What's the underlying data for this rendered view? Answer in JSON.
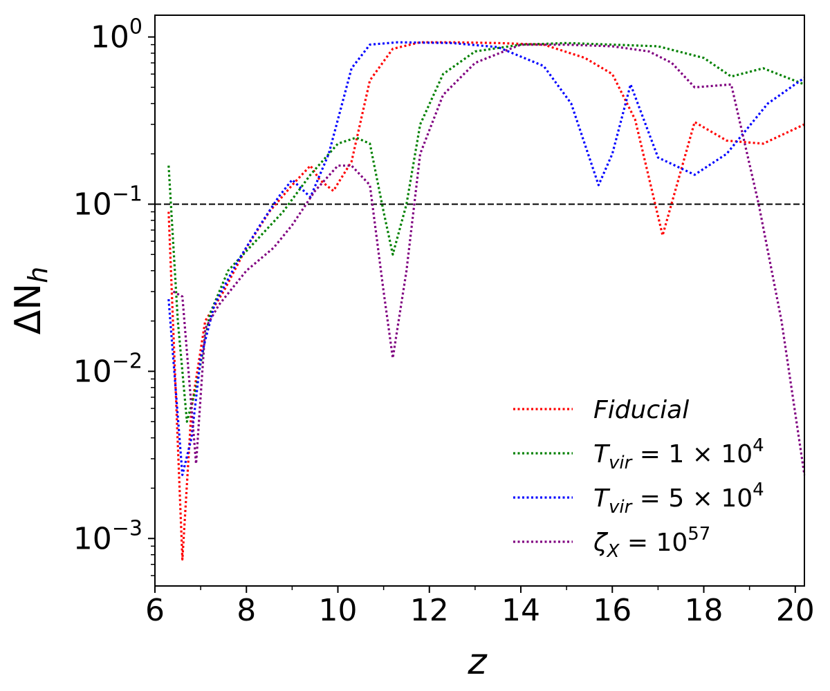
{
  "chart_data": {
    "type": "line",
    "xlabel": "z",
    "ylabel": "ΔN",
    "ylabel_sub": "h",
    "yscale": "log",
    "xlim": [
      6,
      20.2
    ],
    "ylim": [
      0.00052,
      1.35
    ],
    "x_ticks": [
      {
        "value": 6,
        "label": "6"
      },
      {
        "value": 8,
        "label": "8"
      },
      {
        "value": 10,
        "label": "10"
      },
      {
        "value": 12,
        "label": "12"
      },
      {
        "value": 14,
        "label": "14"
      },
      {
        "value": 16,
        "label": "16"
      },
      {
        "value": 18,
        "label": "18"
      },
      {
        "value": 20,
        "label": "20"
      }
    ],
    "x_minor_ticks": [
      7,
      9,
      11,
      13,
      15,
      17,
      19
    ],
    "y_ticks": [
      {
        "value": 0.001,
        "base": "10",
        "exp": "−3"
      },
      {
        "value": 0.01,
        "base": "10",
        "exp": "−2"
      },
      {
        "value": 0.1,
        "base": "10",
        "exp": "−1"
      },
      {
        "value": 1,
        "base": "10",
        "exp": "0"
      }
    ],
    "reference_line": {
      "y": 0.1,
      "style": "dashed",
      "color": "#000000"
    },
    "legend": {
      "placement": "lower-right",
      "frame": false
    },
    "series": [
      {
        "name": "Fiducial",
        "color": "#ff0000",
        "points": [
          [
            6.3,
            0.09
          ],
          [
            6.6,
            0.00075
          ],
          [
            6.8,
            0.006
          ],
          [
            7.1,
            0.02
          ],
          [
            7.5,
            0.03
          ],
          [
            8.0,
            0.055
          ],
          [
            8.5,
            0.09
          ],
          [
            9.0,
            0.13
          ],
          [
            9.4,
            0.17
          ],
          [
            9.6,
            0.14
          ],
          [
            9.9,
            0.12
          ],
          [
            10.3,
            0.18
          ],
          [
            10.7,
            0.55
          ],
          [
            11.2,
            0.85
          ],
          [
            11.8,
            0.93
          ],
          [
            12.5,
            0.93
          ],
          [
            13.5,
            0.92
          ],
          [
            14.5,
            0.9
          ],
          [
            15.4,
            0.75
          ],
          [
            16.0,
            0.6
          ],
          [
            16.5,
            0.32
          ],
          [
            17.1,
            0.065
          ],
          [
            17.8,
            0.31
          ],
          [
            18.5,
            0.24
          ],
          [
            19.3,
            0.23
          ],
          [
            20.2,
            0.3
          ]
        ]
      },
      {
        "name": "T_vir = 1×10^4",
        "label_base": "T",
        "label_sub": "vir",
        "label_rest": " = 1 × 10",
        "label_sup": "4",
        "color": "#008000",
        "points": [
          [
            6.3,
            0.17
          ],
          [
            6.5,
            0.02
          ],
          [
            6.7,
            0.005
          ],
          [
            6.9,
            0.008
          ],
          [
            7.2,
            0.022
          ],
          [
            7.6,
            0.04
          ],
          [
            8.2,
            0.06
          ],
          [
            8.8,
            0.09
          ],
          [
            9.4,
            0.15
          ],
          [
            10.0,
            0.23
          ],
          [
            10.4,
            0.25
          ],
          [
            10.7,
            0.23
          ],
          [
            11.0,
            0.09
          ],
          [
            11.2,
            0.05
          ],
          [
            11.5,
            0.1
          ],
          [
            11.8,
            0.3
          ],
          [
            12.3,
            0.6
          ],
          [
            13.0,
            0.82
          ],
          [
            14.0,
            0.9
          ],
          [
            15.0,
            0.92
          ],
          [
            16.0,
            0.9
          ],
          [
            17.0,
            0.88
          ],
          [
            18.0,
            0.75
          ],
          [
            18.6,
            0.58
          ],
          [
            19.3,
            0.65
          ],
          [
            20.2,
            0.52
          ]
        ]
      },
      {
        "name": "T_vir = 5×10^4",
        "label_base": "T",
        "label_sub": "vir",
        "label_rest": " = 5 × 10",
        "label_sup": "4",
        "color": "#0000ff",
        "points": [
          [
            6.3,
            0.027
          ],
          [
            6.6,
            0.0024
          ],
          [
            6.8,
            0.004
          ],
          [
            7.0,
            0.012
          ],
          [
            7.3,
            0.025
          ],
          [
            7.8,
            0.045
          ],
          [
            8.3,
            0.075
          ],
          [
            8.7,
            0.11
          ],
          [
            9.0,
            0.14
          ],
          [
            9.4,
            0.11
          ],
          [
            9.8,
            0.2
          ],
          [
            10.3,
            0.65
          ],
          [
            10.7,
            0.9
          ],
          [
            11.3,
            0.93
          ],
          [
            12.5,
            0.92
          ],
          [
            13.5,
            0.87
          ],
          [
            14.5,
            0.67
          ],
          [
            15.1,
            0.4
          ],
          [
            15.7,
            0.13
          ],
          [
            16.0,
            0.2
          ],
          [
            16.4,
            0.52
          ],
          [
            17.0,
            0.19
          ],
          [
            17.8,
            0.15
          ],
          [
            18.5,
            0.2
          ],
          [
            19.4,
            0.4
          ],
          [
            20.2,
            0.57
          ]
        ]
      },
      {
        "name": "ζ_X = 10^57",
        "label_base": "ζ",
        "label_sub": "X",
        "label_rest": " = 10",
        "label_sup": "57",
        "color": "#800080",
        "points": [
          [
            6.4,
            0.03
          ],
          [
            6.6,
            0.028
          ],
          [
            6.9,
            0.0028
          ],
          [
            7.1,
            0.018
          ],
          [
            7.4,
            0.025
          ],
          [
            8.0,
            0.04
          ],
          [
            8.6,
            0.055
          ],
          [
            9.0,
            0.075
          ],
          [
            9.5,
            0.12
          ],
          [
            10.0,
            0.17
          ],
          [
            10.3,
            0.17
          ],
          [
            10.7,
            0.13
          ],
          [
            11.0,
            0.03
          ],
          [
            11.2,
            0.012
          ],
          [
            11.5,
            0.04
          ],
          [
            11.8,
            0.2
          ],
          [
            12.3,
            0.45
          ],
          [
            13.0,
            0.7
          ],
          [
            14.0,
            0.9
          ],
          [
            15.0,
            0.9
          ],
          [
            16.0,
            0.88
          ],
          [
            16.8,
            0.82
          ],
          [
            17.3,
            0.7
          ],
          [
            17.8,
            0.5
          ],
          [
            18.6,
            0.52
          ],
          [
            19.2,
            0.1
          ],
          [
            19.7,
            0.02
          ],
          [
            20.2,
            0.0024
          ]
        ]
      }
    ]
  }
}
